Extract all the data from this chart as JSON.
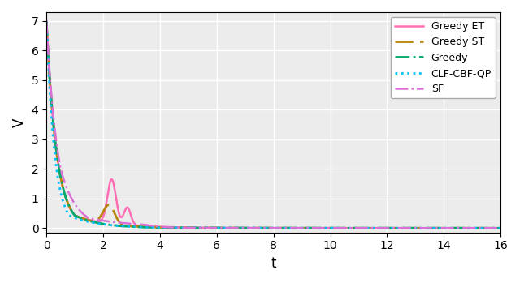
{
  "title": "",
  "xlabel": "t",
  "ylabel": "V",
  "xlim": [
    0,
    16
  ],
  "ylim": [
    -0.15,
    7.3
  ],
  "yticks": [
    0,
    1,
    2,
    3,
    4,
    5,
    6,
    7
  ],
  "xticks": [
    0,
    2,
    4,
    6,
    8,
    10,
    12,
    14,
    16
  ],
  "legend_labels": [
    "Greedy ET",
    "Greedy ST",
    "Greedy",
    "CLF-CBF-QP",
    "SF"
  ],
  "line_colors": [
    "#FF6EB4",
    "#B8860B",
    "#00AA6C",
    "#00BFFF",
    "#DA70D6"
  ],
  "bg_color": "#ececec",
  "grid_color": "white",
  "figsize": [
    6.4,
    3.49
  ],
  "dpi": 100
}
